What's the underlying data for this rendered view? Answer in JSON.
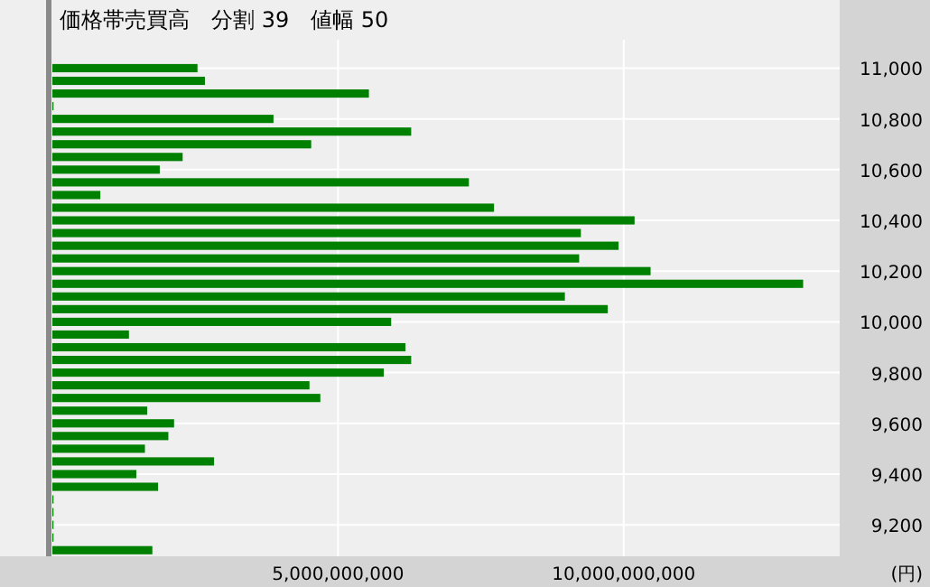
{
  "chart_data": {
    "type": "bar",
    "orientation": "horizontal",
    "title": "価格帯売買高　分割 39　値幅 50",
    "xlabel": "(円)",
    "x": [
      11000,
      10950,
      10900,
      10850,
      10800,
      10750,
      10700,
      10650,
      10600,
      10550,
      10500,
      10450,
      10400,
      10350,
      10300,
      10250,
      10200,
      10150,
      10100,
      10050,
      10000,
      9950,
      9900,
      9850,
      9800,
      9750,
      9700,
      9650,
      9600,
      9550,
      9500,
      9450,
      9400,
      9350,
      9300,
      9250,
      9200,
      9150,
      9100
    ],
    "values": [
      2540000000,
      2670000000,
      5540000000,
      20000000,
      3870000000,
      6280000000,
      4530000000,
      2280000000,
      1880000000,
      7290000000,
      840000000,
      7730000000,
      10190000000,
      9250000000,
      9910000000,
      9220000000,
      10470000000,
      13140000000,
      8970000000,
      9720000000,
      5930000000,
      1340000000,
      6180000000,
      6280000000,
      5800000000,
      4500000000,
      4690000000,
      1660000000,
      2130000000,
      2030000000,
      1620000000,
      2830000000,
      1470000000,
      1850000000,
      20000000,
      20000000,
      20000000,
      20000000,
      1750000000
    ],
    "color": "#008000",
    "xlim": [
      0,
      13780000000
    ],
    "xticks": [
      {
        "value": 5000000000,
        "label": "5,000,000,000"
      },
      {
        "value": 10000000000,
        "label": "10,000,000,000"
      }
    ],
    "ylim": [
      9076,
      11112
    ],
    "yticks": [
      {
        "value": 9200,
        "label": "9,200"
      },
      {
        "value": 9400,
        "label": "9,400"
      },
      {
        "value": 9600,
        "label": "9,600"
      },
      {
        "value": 9800,
        "label": "9,800"
      },
      {
        "value": 10000,
        "label": "10,000"
      },
      {
        "value": 10200,
        "label": "10,200"
      },
      {
        "value": 10400,
        "label": "10,400"
      },
      {
        "value": 10600,
        "label": "10,600"
      },
      {
        "value": 10800,
        "label": "10,800"
      },
      {
        "value": 11000,
        "label": "11,000"
      }
    ],
    "grid": true
  }
}
